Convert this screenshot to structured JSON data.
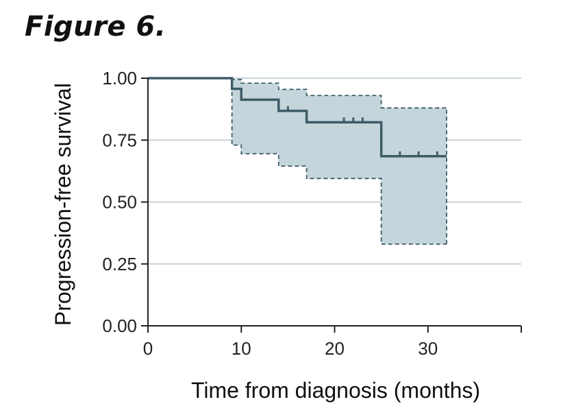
{
  "figure": {
    "label": "Figure 6."
  },
  "colors": {
    "line": "#3c5c66",
    "ci_fill": "#c5d5dc",
    "grid": "#c8d3da",
    "axis": "#222222"
  },
  "chart_data": {
    "type": "line",
    "style": "kaplan-meier-step",
    "xlabel": "Time from diagnosis (months)",
    "ylabel": "Progression-free survival",
    "xlim": [
      0,
      40
    ],
    "ylim": [
      0,
      1
    ],
    "xticks": [
      0,
      10,
      20,
      30
    ],
    "xtick_labels": [
      "0",
      "10",
      "20",
      "30"
    ],
    "yticks": [
      0,
      0.25,
      0.5,
      0.75,
      1.0
    ],
    "ytick_labels": [
      "0.00",
      "0.25",
      "0.50",
      "0.75",
      "1.00"
    ],
    "grid": "horizontal",
    "survival": {
      "x": [
        0,
        9,
        10,
        14,
        17,
        25,
        32
      ],
      "y": [
        1.0,
        0.957,
        0.913,
        0.868,
        0.822,
        0.685,
        0.685
      ]
    },
    "ci_upper": {
      "x": [
        0,
        9,
        10,
        14,
        17,
        25,
        32
      ],
      "y": [
        1.0,
        0.995,
        0.98,
        0.955,
        0.93,
        0.88,
        0.88
      ]
    },
    "ci_lower": {
      "x": [
        0,
        9,
        10,
        14,
        17,
        25,
        32
      ],
      "y": [
        1.0,
        0.73,
        0.695,
        0.645,
        0.595,
        0.33,
        0.33
      ]
    },
    "censor_times": [
      {
        "x": 15,
        "y": 0.868
      },
      {
        "x": 21,
        "y": 0.822
      },
      {
        "x": 22,
        "y": 0.822
      },
      {
        "x": 23,
        "y": 0.822
      },
      {
        "x": 27,
        "y": 0.685
      },
      {
        "x": 29,
        "y": 0.685
      },
      {
        "x": 31,
        "y": 0.685
      }
    ]
  }
}
